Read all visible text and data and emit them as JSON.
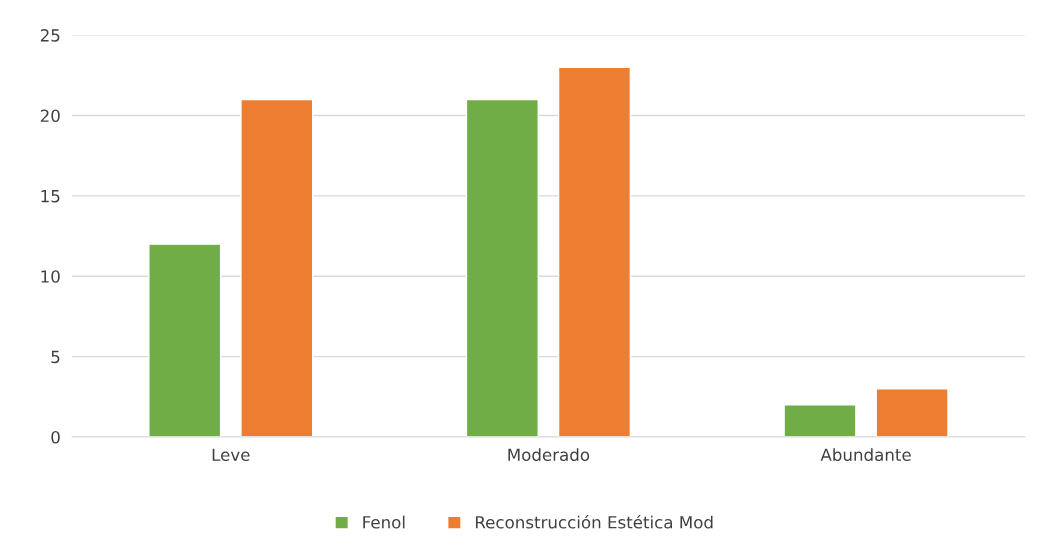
{
  "chart_data": {
    "type": "bar",
    "categories": [
      "Leve",
      "Moderado",
      "Abundante"
    ],
    "series": [
      {
        "name": "Fenol",
        "color": "#70ad47",
        "values": [
          12,
          21,
          2
        ]
      },
      {
        "name": "Reconstrucción Estética Mod",
        "color": "#ed7d31",
        "values": [
          21,
          23,
          3
        ]
      }
    ],
    "ylim": [
      0,
      25
    ],
    "yticks": [
      0,
      5,
      10,
      15,
      20,
      25
    ],
    "grid": "y",
    "legend": "bottom"
  }
}
